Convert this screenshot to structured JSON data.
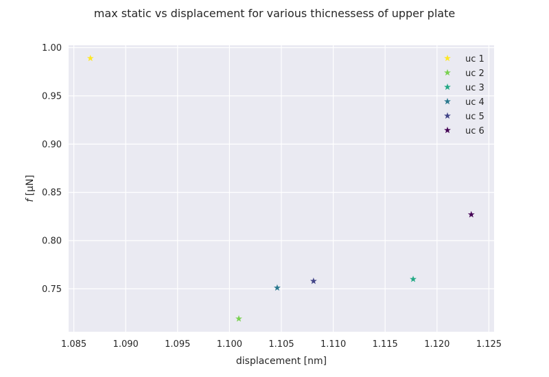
{
  "chart_data": {
    "type": "scatter",
    "title": "max static vs displacement for various thicnessess of upper plate",
    "xlabel": "displacement [nm]",
    "ylabel": "f [μN]",
    "xlim": [
      1.0845,
      1.1255
    ],
    "ylim": [
      0.7055,
      1.0025
    ],
    "xticks": [
      1.085,
      1.09,
      1.095,
      1.1,
      1.105,
      1.11,
      1.115,
      1.12,
      1.125
    ],
    "xtick_labels": [
      "1.085",
      "1.090",
      "1.095",
      "1.100",
      "1.105",
      "1.110",
      "1.115",
      "1.120",
      "1.125"
    ],
    "yticks": [
      0.75,
      0.8,
      0.85,
      0.9,
      0.95,
      1.0
    ],
    "ytick_labels": [
      "0.75",
      "0.80",
      "0.85",
      "0.90",
      "0.95",
      "1.00"
    ],
    "grid": true,
    "legend_position": "top-right",
    "marker": "star",
    "series": [
      {
        "name": "uc 1",
        "color": "#fde725",
        "x": [
          1.0866
        ],
        "y": [
          0.989
        ]
      },
      {
        "name": "uc 2",
        "color": "#7ad151",
        "x": [
          1.1009
        ],
        "y": [
          0.719
        ]
      },
      {
        "name": "uc 3",
        "color": "#22a884",
        "x": [
          1.1177
        ],
        "y": [
          0.76
        ]
      },
      {
        "name": "uc 4",
        "color": "#2a788e",
        "x": [
          1.1046
        ],
        "y": [
          0.751
        ]
      },
      {
        "name": "uc 5",
        "color": "#414487",
        "x": [
          1.1081
        ],
        "y": [
          0.758
        ]
      },
      {
        "name": "uc 6",
        "color": "#440154",
        "x": [
          1.1233
        ],
        "y": [
          0.827
        ]
      }
    ]
  },
  "colors": {
    "plot_background": "#eaeaf2",
    "grid": "#ffffff",
    "text": "#262626"
  }
}
